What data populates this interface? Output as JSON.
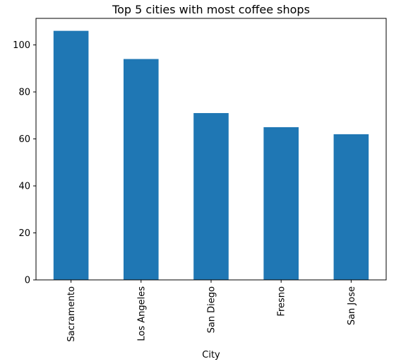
{
  "chart_data": {
    "type": "bar",
    "title": "Top 5 cities with most coffee shops",
    "xlabel": "City",
    "ylabel": "",
    "categories": [
      "Sacramento",
      "Los Angeles",
      "San Diego",
      "Fresno",
      "San Jose"
    ],
    "values": [
      106,
      94,
      71,
      65,
      62
    ],
    "ylim": [
      0,
      111.3
    ],
    "yticks": [
      0,
      20,
      40,
      60,
      80,
      100
    ],
    "grid": false,
    "legend": "none",
    "bar_color": "#1f77b4"
  }
}
